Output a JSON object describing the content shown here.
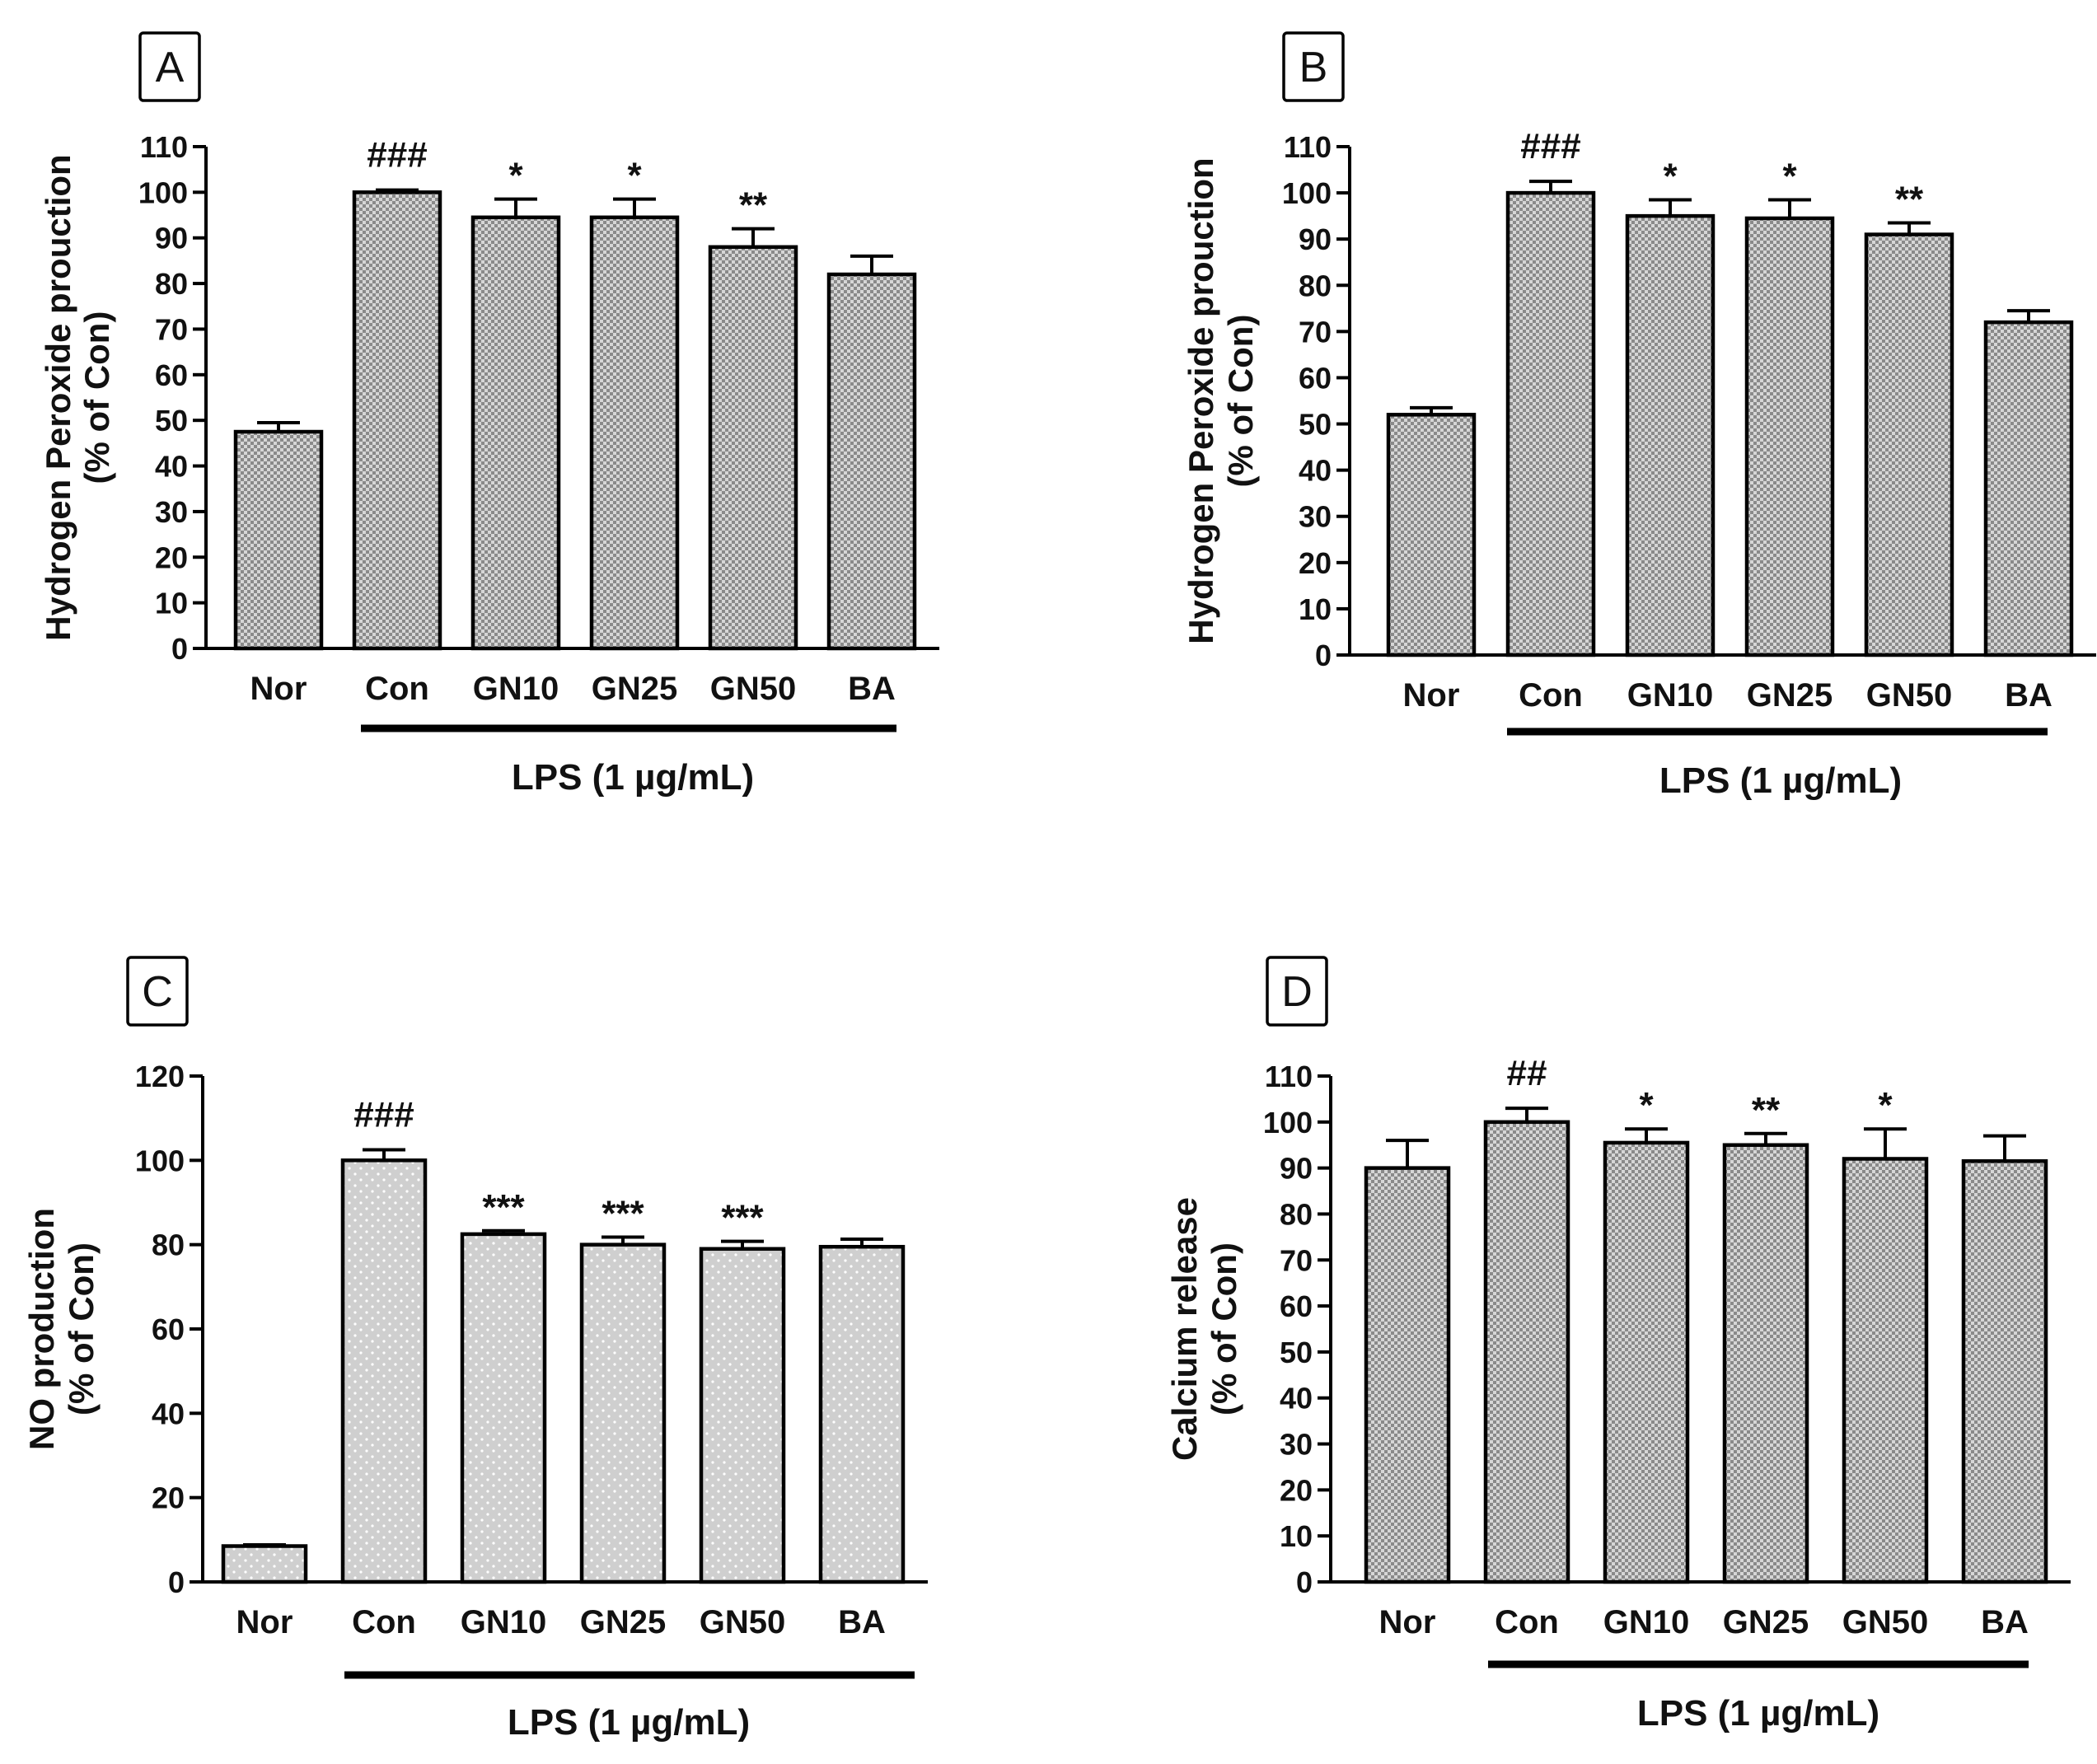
{
  "chart_data": [
    {
      "type": "bar",
      "panel_label": "A",
      "categories": [
        "Nor",
        "Con",
        "GN10",
        "GN25",
        "GN50",
        "BA"
      ],
      "values": [
        47.5,
        100,
        94.5,
        94.5,
        88,
        82
      ],
      "errors": [
        2,
        0.5,
        4,
        4,
        4,
        4
      ],
      "annotations": [
        "",
        "###",
        "*",
        "*",
        "**",
        ""
      ],
      "ylabel": [
        "Hydrogen Peroxide prouction",
        "(% of Con)"
      ],
      "group_label": "LPS (1 µg/mL)",
      "ylim": [
        0,
        110
      ],
      "yticks": [
        0,
        10,
        20,
        30,
        40,
        50,
        60,
        70,
        80,
        90,
        100,
        110
      ],
      "pattern": "checker",
      "grid": false
    },
    {
      "type": "bar",
      "panel_label": "B",
      "categories": [
        "Nor",
        "Con",
        "GN10",
        "GN25",
        "GN50",
        "BA"
      ],
      "values": [
        52,
        100,
        95,
        94.5,
        91,
        72
      ],
      "errors": [
        1.5,
        2.5,
        3.5,
        4,
        2.5,
        2.5
      ],
      "annotations": [
        "",
        "###",
        "*",
        "*",
        "**",
        ""
      ],
      "ylabel": [
        "Hydrogen Peroxide prouction",
        "(% of Con)"
      ],
      "group_label": "LPS (1 µg/mL)",
      "ylim": [
        0,
        110
      ],
      "yticks": [
        0,
        10,
        20,
        30,
        40,
        50,
        60,
        70,
        80,
        90,
        100,
        110
      ],
      "pattern": "checker",
      "grid": false
    },
    {
      "type": "bar",
      "panel_label": "C",
      "categories": [
        "Nor",
        "Con",
        "GN10",
        "GN25",
        "GN50",
        "BA"
      ],
      "values": [
        8.5,
        100,
        82.5,
        80,
        79,
        79.5
      ],
      "errors": [
        0.3,
        2.5,
        0.8,
        1.8,
        1.8,
        1.8
      ],
      "annotations": [
        "",
        "###",
        "***",
        "***",
        "***",
        ""
      ],
      "ylabel": [
        "NO production",
        "(% of Con)"
      ],
      "group_label": "LPS (1 µg/mL)",
      "ylim": [
        0,
        120
      ],
      "yticks": [
        0,
        20,
        40,
        60,
        80,
        100,
        120
      ],
      "pattern": "dots",
      "grid": false
    },
    {
      "type": "bar",
      "panel_label": "D",
      "categories": [
        "Nor",
        "Con",
        "GN10",
        "GN25",
        "GN50",
        "BA"
      ],
      "values": [
        90,
        100,
        95.5,
        95,
        92,
        91.5
      ],
      "errors": [
        6,
        3,
        3,
        2.5,
        6.5,
        5.5
      ],
      "annotations": [
        "",
        "##",
        "*",
        "**",
        "*",
        ""
      ],
      "ylabel": [
        "Calcium release",
        "(% of Con)"
      ],
      "group_label": "LPS (1 µg/mL)",
      "ylim": [
        0,
        110
      ],
      "yticks": [
        0,
        10,
        20,
        30,
        40,
        50,
        60,
        70,
        80,
        90,
        100,
        110
      ],
      "pattern": "checker",
      "grid": false
    }
  ]
}
